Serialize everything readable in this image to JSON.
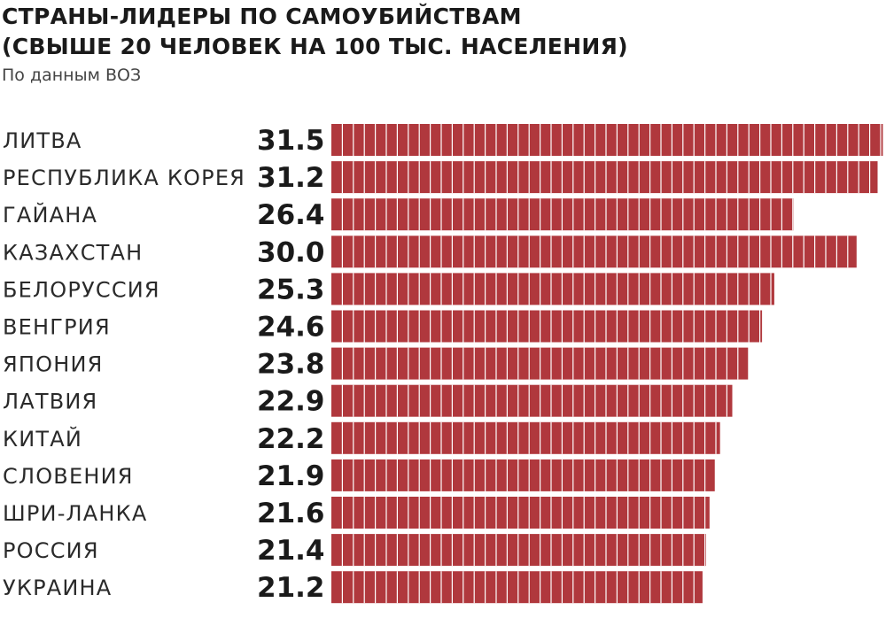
{
  "header": {
    "title_line1": "СТРАНЫ-ЛИДЕРЫ ПО САМОУБИЙСТВАМ",
    "title_line2": "(СВЫШЕ 20 ЧЕЛОВЕК НА 100 ТЫС. НАСЕЛЕНИЯ)",
    "subtitle": "По данным ВОЗ"
  },
  "chart_data": {
    "type": "bar",
    "orientation": "horizontal",
    "title": "СТРАНЫ-ЛИДЕРЫ ПО САМОУБИЙСТВАМ (СВЫШЕ 20 ЧЕЛОВЕК НА 100 ТЫС. НАСЕЛЕНИЯ)",
    "subtitle": "По данным ВОЗ",
    "categories": [
      "ЛИТВА",
      "РЕСПУБЛИКА КОРЕЯ",
      "ГАЙАНА",
      "КАЗАХСТАН",
      "БЕЛОРУССИЯ",
      "ВЕНГРИЯ",
      "ЯПОНИЯ",
      "ЛАТВИЯ",
      "КИТАЙ",
      "СЛОВЕНИЯ",
      "ШРИ-ЛАНКА",
      "РОССИЯ",
      "УКРАИНА"
    ],
    "values": [
      31.5,
      31.2,
      26.4,
      30.0,
      25.3,
      24.6,
      23.8,
      22.9,
      22.2,
      21.9,
      21.6,
      21.4,
      21.2
    ],
    "value_labels": [
      "31.5",
      "31.2",
      "26.4",
      "30.0",
      "25.3",
      "24.6",
      "23.8",
      "22.9",
      "22.2",
      "21.9",
      "21.6",
      "21.4",
      "21.2"
    ],
    "xlabel": "",
    "ylabel": "",
    "grid": false,
    "legend": "none",
    "bar_color": "#b0383d",
    "bar_segment_divider_color": "#ffffff"
  }
}
